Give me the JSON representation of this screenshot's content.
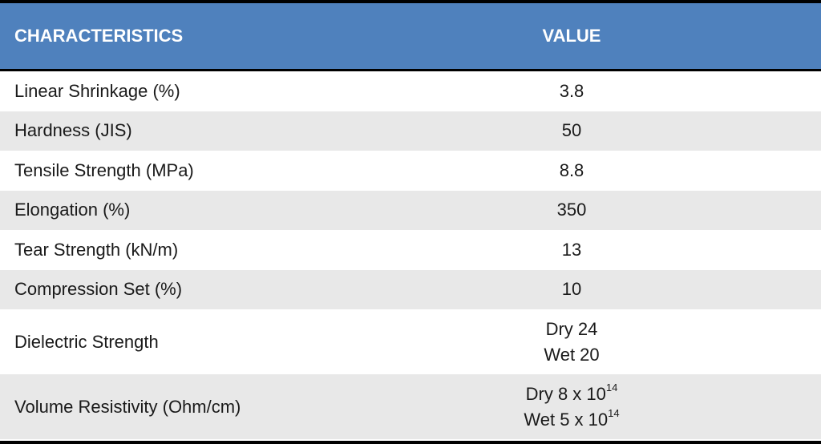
{
  "table": {
    "headers": {
      "characteristic": "CHARACTERISTICS",
      "value": "VALUE"
    },
    "rows": [
      {
        "label": "Linear Shrinkage (%)",
        "value": "3.8"
      },
      {
        "label": "Hardness (JIS)",
        "value": "50"
      },
      {
        "label": "Tensile Strength (MPa)",
        "value": "8.8"
      },
      {
        "label": "Elongation (%)",
        "value": "350"
      },
      {
        "label": "Tear Strength (kN/m)",
        "value": "13"
      },
      {
        "label": "Compression Set (%)",
        "value": "10"
      },
      {
        "label": "Dielectric Strength",
        "line1": "Dry 24",
        "line2": "Wet 20"
      },
      {
        "label": "Volume Resistivity (Ohm/cm)",
        "line1_base": "Dry 8 x 10",
        "line1_exp": "14",
        "line2_base": "Wet 5 x 10",
        "line2_exp": "14"
      }
    ]
  },
  "colors": {
    "header_bg": "#4f81bd",
    "header_text": "#ffffff",
    "alt_row_bg": "#e8e8e8",
    "border": "#000000"
  }
}
